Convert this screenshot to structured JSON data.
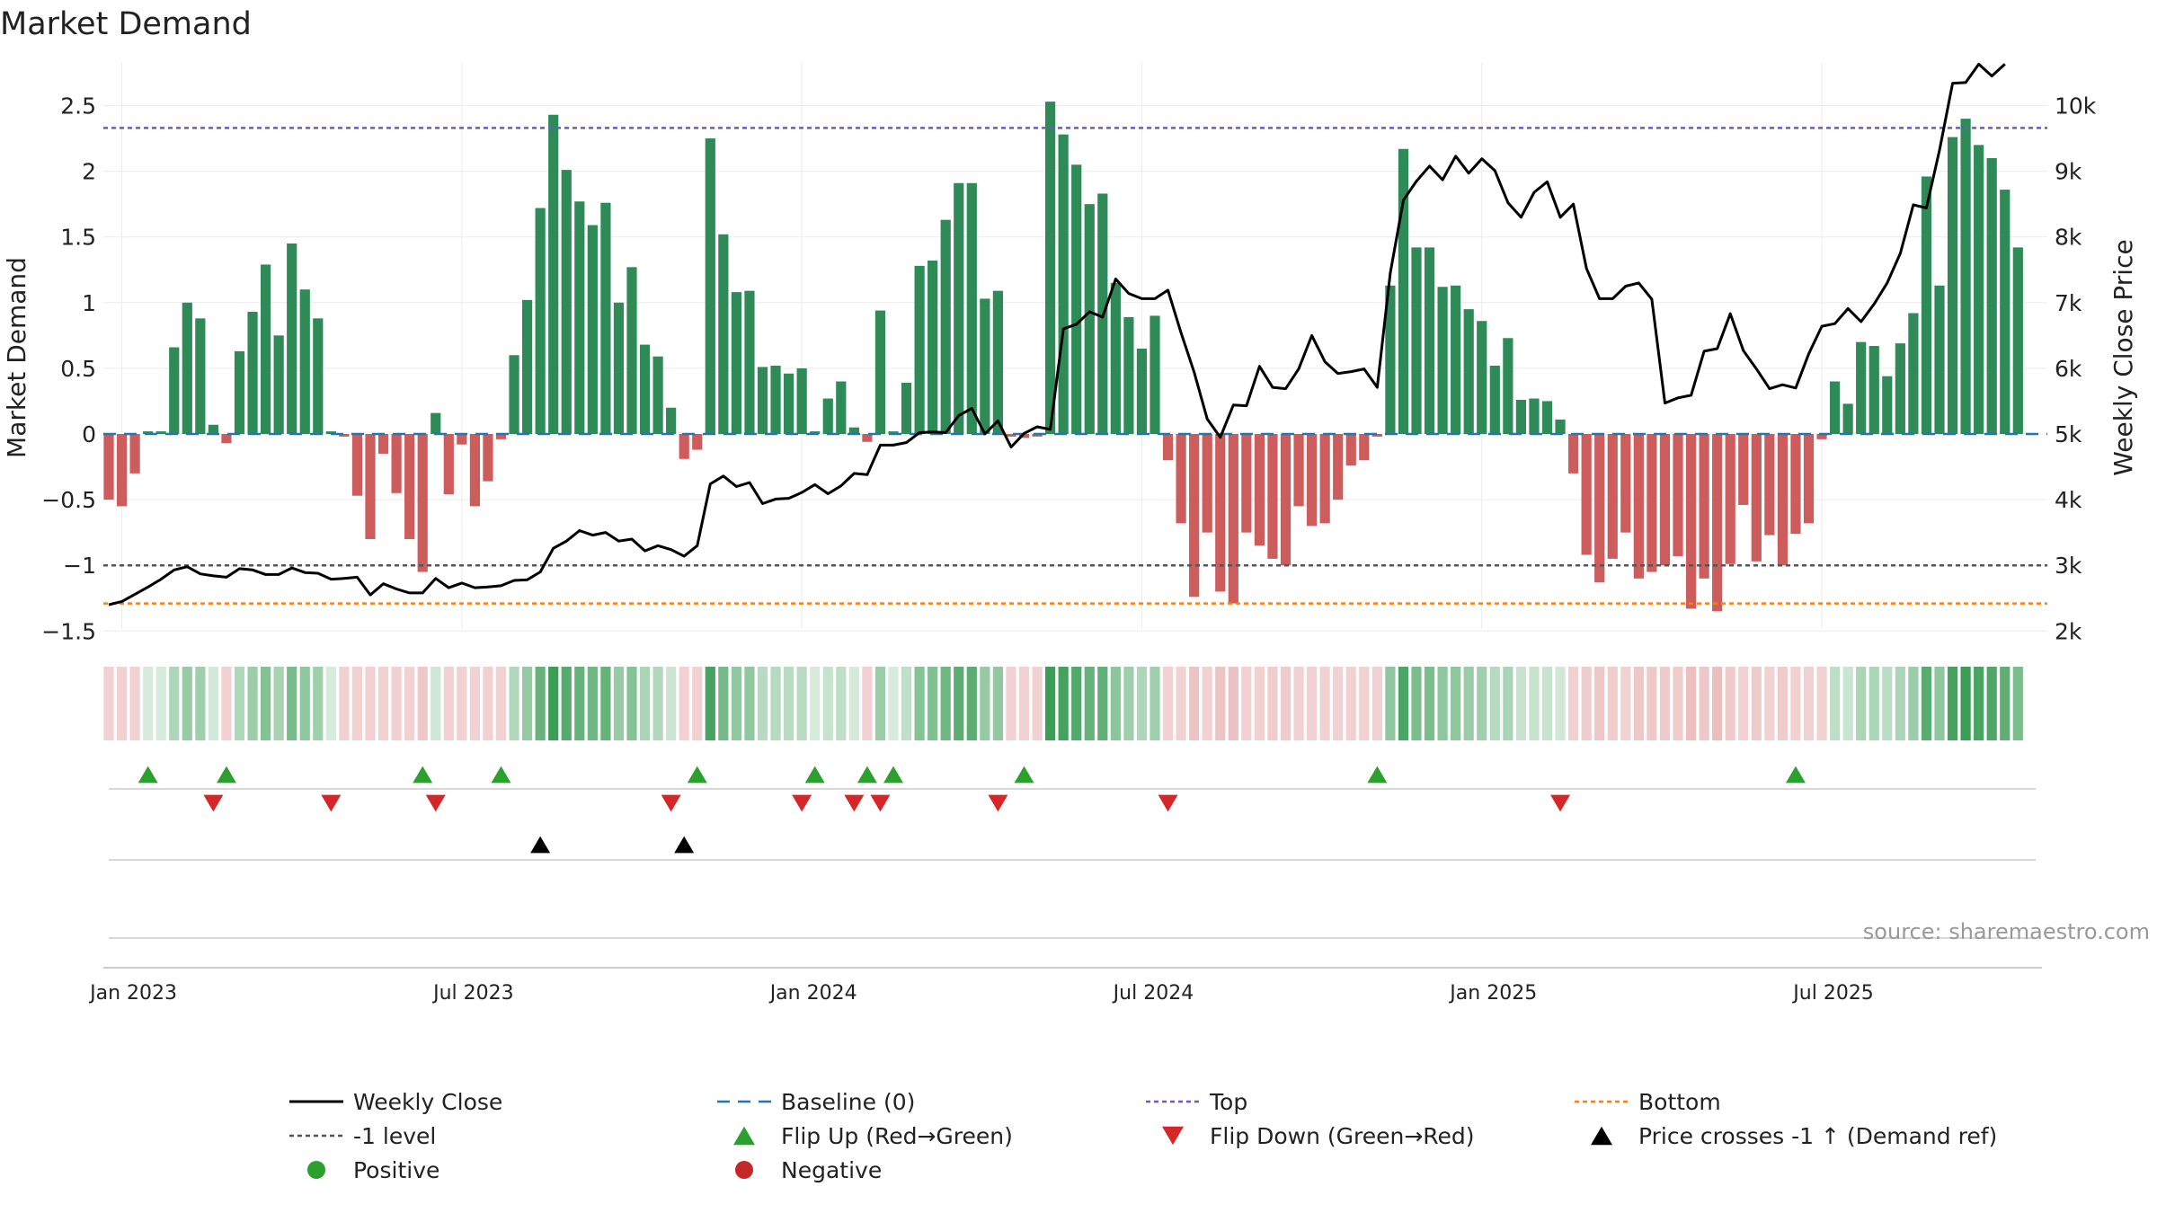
{
  "chart_data": {
    "type": "bar",
    "title": "Market Demand",
    "ylabel": "Market Demand",
    "y2label": "Weekly Close Price",
    "ylim": [
      -1.65,
      2.8
    ],
    "y2lim": [
      1850,
      10550
    ],
    "yticks": [
      {
        "v": 2.5,
        "label": "2.5"
      },
      {
        "v": 2,
        "label": "2"
      },
      {
        "v": 1.5,
        "label": "1.5"
      },
      {
        "v": 1,
        "label": "1"
      },
      {
        "v": 0.5,
        "label": "0.5"
      },
      {
        "v": 0,
        "label": "0"
      },
      {
        "v": -0.5,
        "label": "−0.5"
      },
      {
        "v": -1,
        "label": "−1"
      },
      {
        "v": -1.5,
        "label": "−1.5"
      }
    ],
    "y2ticks": [
      {
        "v": 10000,
        "label": "10k"
      },
      {
        "v": 9000,
        "label": "9k"
      },
      {
        "v": 8000,
        "label": "8k"
      },
      {
        "v": 7000,
        "label": "7k"
      },
      {
        "v": 6000,
        "label": "6k"
      },
      {
        "v": 5000,
        "label": "5k"
      },
      {
        "v": 4000,
        "label": "4k"
      },
      {
        "v": 3000,
        "label": "3k"
      },
      {
        "v": 2000,
        "label": "2k"
      }
    ],
    "xticks": [
      {
        "i": 1,
        "label": "Jan 2023"
      },
      {
        "i": 27,
        "label": "Jul 2023"
      },
      {
        "i": 53,
        "label": "Jan 2024"
      },
      {
        "i": 79,
        "label": "Jul 2024"
      },
      {
        "i": 105,
        "label": "Jan 2025"
      },
      {
        "i": 131,
        "label": "Jul 2025"
      }
    ],
    "reference_lines": {
      "top": 2.33,
      "minus_one": -1.0,
      "bottom": -1.29,
      "baseline": 0
    },
    "demand": [
      -0.5,
      -0.55,
      -0.3,
      0.02,
      0.02,
      0.66,
      1.0,
      0.88,
      0.07,
      -0.07,
      0.63,
      0.93,
      1.29,
      0.75,
      1.45,
      1.1,
      0.88,
      0.02,
      -0.02,
      -0.47,
      -0.8,
      -0.15,
      -0.45,
      -0.8,
      -1.05,
      0.16,
      -0.46,
      -0.08,
      -0.55,
      -0.36,
      -0.04,
      0.6,
      1.02,
      1.72,
      2.43,
      2.01,
      1.77,
      1.59,
      1.76,
      1.0,
      1.27,
      0.68,
      0.59,
      0.2,
      -0.19,
      -0.12,
      2.25,
      1.52,
      1.08,
      1.09,
      0.51,
      0.52,
      0.46,
      0.5,
      0.02,
      0.27,
      0.4,
      0.05,
      -0.06,
      0.94,
      0.02,
      0.39,
      1.28,
      1.32,
      1.63,
      1.91,
      1.91,
      1.03,
      1.09,
      -0.02,
      -0.03,
      -0.02,
      2.53,
      2.28,
      2.05,
      1.75,
      1.83,
      1.15,
      0.89,
      0.65,
      0.9,
      -0.2,
      -0.68,
      -1.24,
      -0.75,
      -1.2,
      -1.29,
      -0.75,
      -0.85,
      -0.95,
      -1.0,
      -0.55,
      -0.7,
      -0.68,
      -0.5,
      -0.24,
      -0.2,
      -0.02,
      1.13,
      2.17,
      1.42,
      1.42,
      1.12,
      1.13,
      0.95,
      0.86,
      0.52,
      0.73,
      0.26,
      0.27,
      0.25,
      0.11,
      -0.3,
      -0.92,
      -1.13,
      -0.95,
      -0.75,
      -1.1,
      -1.05,
      -1.0,
      -0.93,
      -1.33,
      -1.1,
      -1.35,
      -0.99,
      -0.54,
      -0.97,
      -0.77,
      -1.0,
      -0.76,
      -0.68,
      -0.04,
      0.4,
      0.23,
      0.7,
      0.67,
      0.44,
      0.69,
      0.92,
      1.96,
      1.13,
      2.26,
      2.4,
      2.2,
      2.1,
      1.86,
      1.42
    ],
    "close": [
      2400,
      2450,
      2560,
      2670,
      2790,
      2930,
      2980,
      2870,
      2840,
      2820,
      2950,
      2930,
      2860,
      2860,
      2960,
      2890,
      2880,
      2790,
      2800,
      2820,
      2550,
      2720,
      2640,
      2580,
      2580,
      2800,
      2660,
      2730,
      2660,
      2670,
      2690,
      2770,
      2780,
      2900,
      3260,
      3370,
      3530,
      3460,
      3500,
      3370,
      3400,
      3220,
      3300,
      3240,
      3140,
      3300,
      4240,
      4360,
      4200,
      4260,
      3940,
      4010,
      4020,
      4110,
      4230,
      4090,
      4210,
      4400,
      4380,
      4830,
      4830,
      4870,
      5020,
      5030,
      5020,
      5280,
      5390,
      5000,
      5200,
      4800,
      5010,
      5110,
      5070,
      6600,
      6670,
      6860,
      6780,
      7360,
      7140,
      7060,
      7060,
      7190,
      6540,
      5940,
      5230,
      4950,
      5440,
      5430,
      6030,
      5710,
      5690,
      5990,
      6500,
      6100,
      5920,
      5950,
      5990,
      5710,
      7450,
      8560,
      8850,
      9080,
      8870,
      9230,
      8970,
      9190,
      9010,
      8520,
      8300,
      8680,
      8840,
      8300,
      8500,
      7520,
      7060,
      7060,
      7250,
      7300,
      7050,
      5470,
      5550,
      5590,
      6260,
      6300,
      6830,
      6270,
      5990,
      5690,
      5750,
      5700,
      6220,
      6640,
      6680,
      6910,
      6710,
      6980,
      7300,
      7750,
      8490,
      8440,
      9320,
      10340,
      10350,
      10630,
      10450,
      10630
    ],
    "flip_up_idx": [
      3,
      9,
      24,
      30,
      45,
      54,
      58,
      60,
      70,
      97,
      129
    ],
    "flip_down_idx": [
      8,
      17,
      25,
      43,
      53,
      57,
      59,
      68,
      81,
      111
    ],
    "cross_idx": [
      33,
      44
    ],
    "source_note": "source: sharemaestro.com",
    "legend": [
      {
        "label": "Weekly Close",
        "kind": "line",
        "color": "#000000"
      },
      {
        "label": "Baseline (0)",
        "kind": "dash",
        "color": "#1f77b4"
      },
      {
        "label": "Top",
        "kind": "dot",
        "color": "#6a5acd"
      },
      {
        "label": "Bottom",
        "kind": "dot",
        "color": "#ff7f0e"
      },
      {
        "label": "-1 level",
        "kind": "dot",
        "color": "#555555"
      },
      {
        "label": "Flip Up (Red→Green)",
        "kind": "tri-up",
        "color": "#2ca02c"
      },
      {
        "label": "Flip Down (Green→Red)",
        "kind": "tri-down",
        "color": "#d62728"
      },
      {
        "label": "Price crosses -1 ↑ (Demand ref)",
        "kind": "tri-up",
        "color": "#000000"
      },
      {
        "label": "Positive",
        "kind": "circle",
        "color": "#2ca02c"
      },
      {
        "label": "Negative",
        "kind": "circle",
        "color": "#c62828"
      }
    ],
    "colors": {
      "positive_bar": "#2e8b57",
      "negative_bar": "#cd5c5c",
      "top": "#6a5acd",
      "bottom": "#ff7f0e",
      "minus_one": "#555555",
      "baseline": "#1f77b4",
      "flip_up": "#2ca02c",
      "flip_down": "#d62728",
      "cross": "#000000"
    }
  }
}
